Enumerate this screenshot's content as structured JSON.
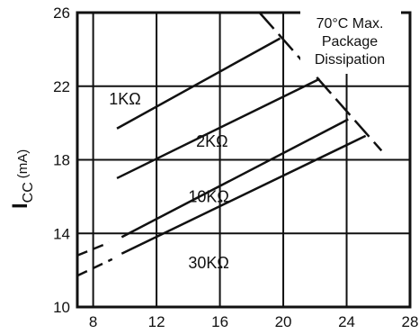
{
  "chart_data": {
    "type": "line",
    "xlim": [
      7,
      28
    ],
    "ylim": [
      10,
      26
    ],
    "x_ticks": [
      8,
      12,
      16,
      20,
      24,
      28
    ],
    "y_ticks": [
      10,
      14,
      18,
      22,
      26
    ],
    "ylabel": {
      "main": "I",
      "sub": "CC",
      "unit": "(mA)"
    },
    "grid": true,
    "series": [
      {
        "name": "1KΩ",
        "points": [
          [
            9.5,
            19.7
          ],
          [
            19.8,
            24.6
          ]
        ]
      },
      {
        "name": "2KΩ",
        "points": [
          [
            9.5,
            17.0
          ],
          [
            22.3,
            22.4
          ]
        ]
      },
      {
        "name": "10KΩ",
        "dashed_points": [
          [
            7.0,
            12.8
          ],
          [
            9.0,
            13.5
          ]
        ],
        "points": [
          [
            9.8,
            13.8
          ],
          [
            24.1,
            20.2
          ]
        ]
      },
      {
        "name": "30KΩ",
        "dashed_points": [
          [
            7.0,
            11.7
          ],
          [
            9.2,
            12.6
          ]
        ],
        "points": [
          [
            9.8,
            12.9
          ],
          [
            25.2,
            19.3
          ]
        ]
      }
    ],
    "limit_line": {
      "label": [
        "70°C Max.",
        "Package",
        "Dissipation"
      ],
      "points": [
        [
          18.5,
          26.0
        ],
        [
          26.2,
          18.5
        ]
      ]
    }
  }
}
